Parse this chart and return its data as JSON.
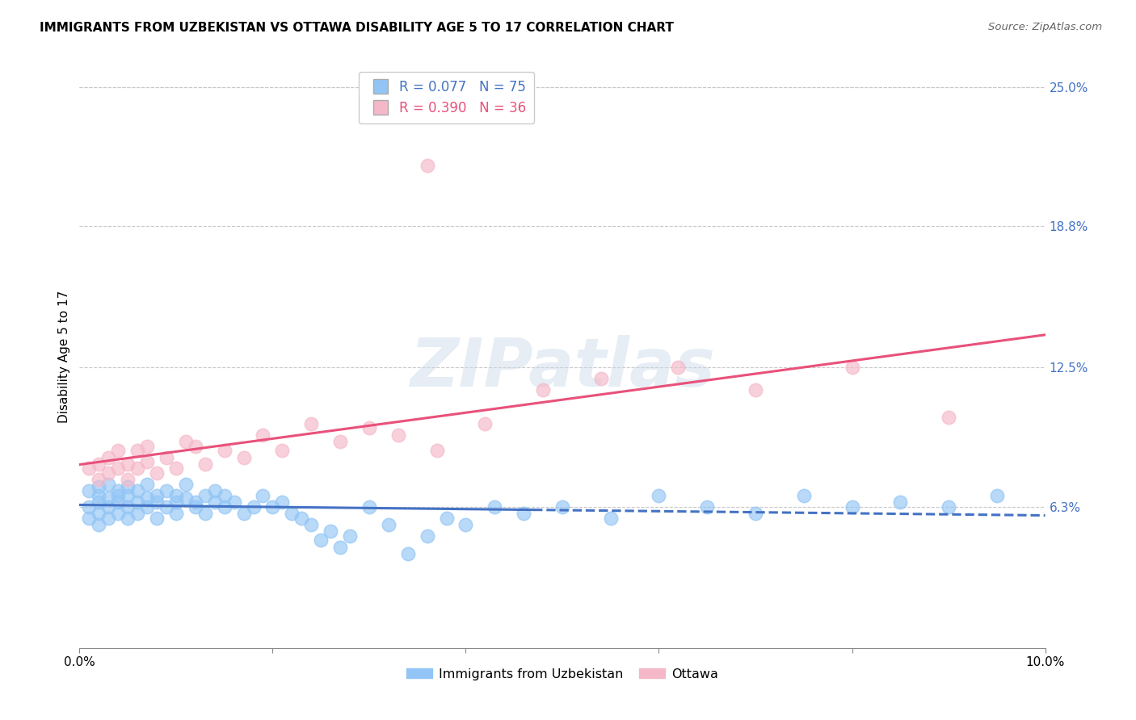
{
  "title": "IMMIGRANTS FROM UZBEKISTAN VS OTTAWA DISABILITY AGE 5 TO 17 CORRELATION CHART",
  "source": "Source: ZipAtlas.com",
  "ylabel": "Disability Age 5 to 17",
  "xlim": [
    0.0,
    0.1
  ],
  "ylim": [
    0.0,
    0.26
  ],
  "right_yticks": [
    0.063,
    0.125,
    0.188,
    0.25
  ],
  "right_yticklabels": [
    "6.3%",
    "12.5%",
    "18.8%",
    "25.0%"
  ],
  "legend_blue_label": "Immigrants from Uzbekistan",
  "legend_pink_label": "Ottawa",
  "blue_color": "#92c5f5",
  "pink_color": "#f5b8c8",
  "blue_line_color": "#4472c4",
  "pink_line_color": "#e8517a",
  "blue_r": 0.077,
  "blue_n": 75,
  "pink_r": 0.39,
  "pink_n": 36,
  "watermark_text": "ZIPatlas",
  "blue_x": [
    0.001,
    0.001,
    0.001,
    0.002,
    0.002,
    0.002,
    0.002,
    0.002,
    0.003,
    0.003,
    0.003,
    0.003,
    0.004,
    0.004,
    0.004,
    0.004,
    0.005,
    0.005,
    0.005,
    0.005,
    0.006,
    0.006,
    0.006,
    0.007,
    0.007,
    0.007,
    0.008,
    0.008,
    0.008,
    0.009,
    0.009,
    0.01,
    0.01,
    0.01,
    0.011,
    0.011,
    0.012,
    0.012,
    0.013,
    0.013,
    0.014,
    0.014,
    0.015,
    0.015,
    0.016,
    0.017,
    0.018,
    0.019,
    0.02,
    0.021,
    0.022,
    0.023,
    0.024,
    0.025,
    0.026,
    0.027,
    0.028,
    0.03,
    0.032,
    0.034,
    0.036,
    0.038,
    0.04,
    0.043,
    0.046,
    0.05,
    0.055,
    0.06,
    0.065,
    0.07,
    0.075,
    0.08,
    0.085,
    0.09,
    0.095
  ],
  "blue_y": [
    0.063,
    0.058,
    0.07,
    0.065,
    0.06,
    0.068,
    0.055,
    0.072,
    0.063,
    0.067,
    0.058,
    0.073,
    0.065,
    0.06,
    0.07,
    0.068,
    0.063,
    0.058,
    0.068,
    0.072,
    0.065,
    0.06,
    0.07,
    0.067,
    0.063,
    0.073,
    0.065,
    0.068,
    0.058,
    0.063,
    0.07,
    0.065,
    0.06,
    0.068,
    0.067,
    0.073,
    0.065,
    0.063,
    0.068,
    0.06,
    0.065,
    0.07,
    0.063,
    0.068,
    0.065,
    0.06,
    0.063,
    0.068,
    0.063,
    0.065,
    0.06,
    0.058,
    0.055,
    0.048,
    0.052,
    0.045,
    0.05,
    0.063,
    0.055,
    0.042,
    0.05,
    0.058,
    0.055,
    0.063,
    0.06,
    0.063,
    0.058,
    0.068,
    0.063,
    0.06,
    0.068,
    0.063,
    0.065,
    0.063,
    0.068
  ],
  "pink_x": [
    0.001,
    0.002,
    0.002,
    0.003,
    0.003,
    0.004,
    0.004,
    0.005,
    0.005,
    0.006,
    0.006,
    0.007,
    0.007,
    0.008,
    0.009,
    0.01,
    0.011,
    0.012,
    0.013,
    0.015,
    0.017,
    0.019,
    0.021,
    0.024,
    0.027,
    0.03,
    0.033,
    0.037,
    0.042,
    0.048,
    0.054,
    0.062,
    0.07,
    0.08,
    0.09,
    0.036
  ],
  "pink_y": [
    0.08,
    0.075,
    0.082,
    0.078,
    0.085,
    0.08,
    0.088,
    0.075,
    0.082,
    0.08,
    0.088,
    0.083,
    0.09,
    0.078,
    0.085,
    0.08,
    0.092,
    0.09,
    0.082,
    0.088,
    0.085,
    0.095,
    0.088,
    0.1,
    0.092,
    0.098,
    0.095,
    0.088,
    0.1,
    0.115,
    0.12,
    0.125,
    0.115,
    0.125,
    0.103,
    0.215
  ]
}
